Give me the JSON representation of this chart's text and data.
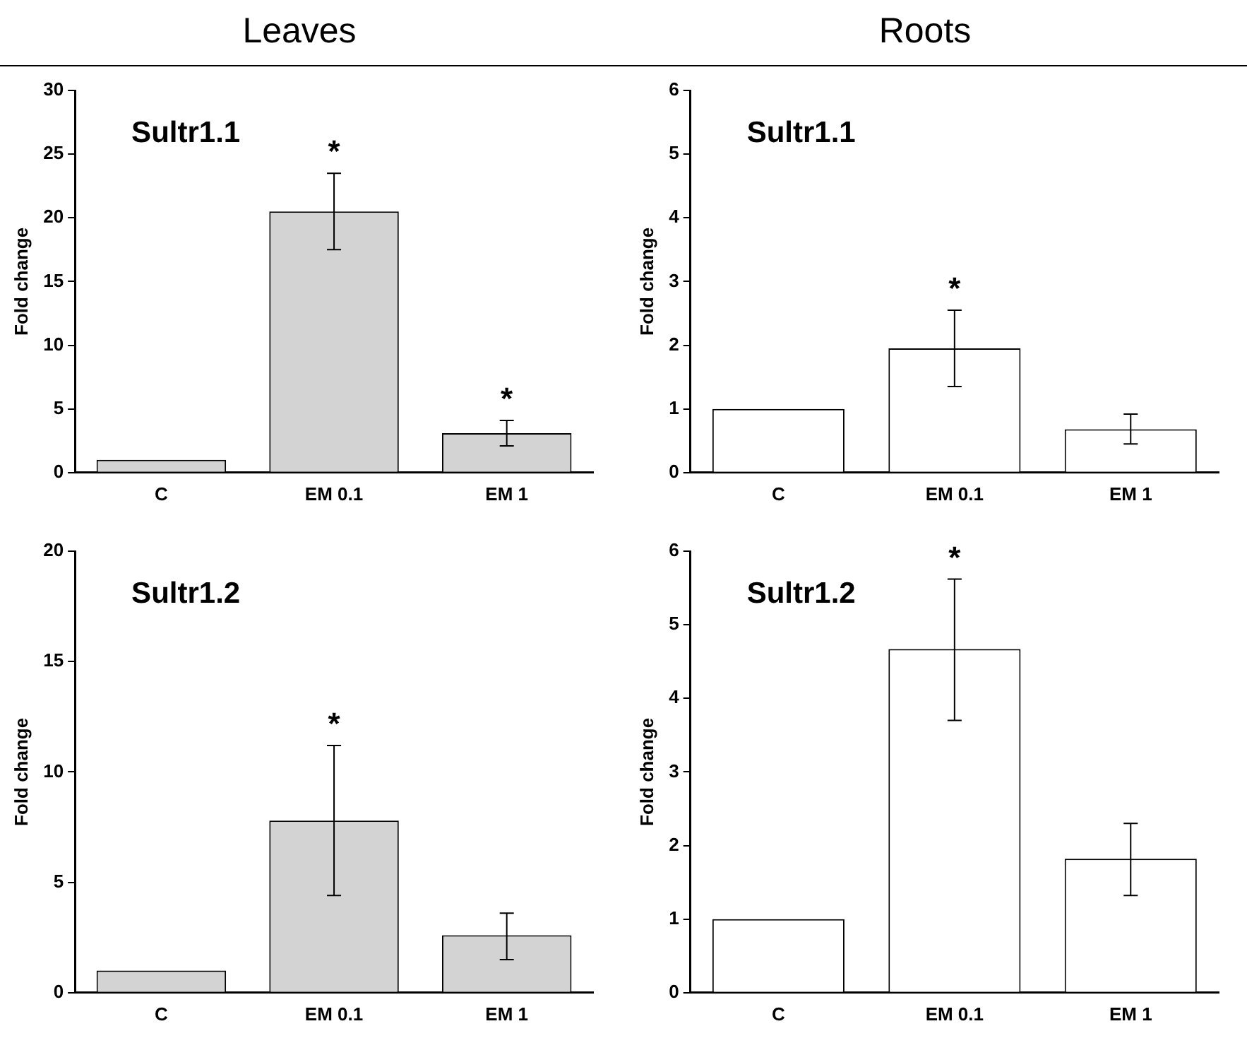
{
  "chart_data": [
    {
      "type": "bar",
      "title": "Leaves",
      "ylabel": "Fold change",
      "categories": [
        "C",
        "EM 0.1",
        "EM 1"
      ],
      "values": [
        1,
        20.5,
        3.1
      ],
      "errors": [
        null,
        [
          17.5,
          23.5
        ],
        [
          2.1,
          4.1
        ]
      ],
      "color": "#d3d3d3",
      "ylim": [
        0,
        30
      ],
      "yticks": [
        0,
        5,
        10,
        15,
        20,
        25,
        30
      ],
      "grid": false,
      "legend": false,
      "annotations": [
        "Sultr1.1",
        {
          "text": "*",
          "x": "EM 0.1",
          "y": 23.5
        },
        {
          "text": "*",
          "x": "EM 1",
          "y": 4.1
        }
      ]
    },
    {
      "type": "bar",
      "title": "Roots",
      "ylabel": "Fold change",
      "categories": [
        "C",
        "EM 0.1",
        "EM 1"
      ],
      "values": [
        1,
        1.95,
        0.68
      ],
      "errors": [
        null,
        [
          1.35,
          2.55
        ],
        [
          0.45,
          0.92
        ]
      ],
      "color": "#ffffff",
      "ylim": [
        0,
        6
      ],
      "yticks": [
        0,
        1,
        2,
        3,
        4,
        5,
        6
      ],
      "grid": false,
      "legend": false,
      "annotations": [
        "Sultr1.1",
        {
          "text": "*",
          "x": "EM 0.1",
          "y": 2.55
        }
      ]
    },
    {
      "type": "bar",
      "ylabel": "Fold change",
      "categories": [
        "C",
        "EM 0.1",
        "EM 1"
      ],
      "values": [
        1,
        7.8,
        2.6
      ],
      "errors": [
        null,
        [
          4.4,
          11.2
        ],
        [
          1.5,
          3.6
        ]
      ],
      "color": "#d3d3d3",
      "ylim": [
        0,
        20
      ],
      "yticks": [
        0,
        5,
        10,
        15,
        20
      ],
      "grid": false,
      "legend": false,
      "annotations": [
        "Sultr1.2",
        {
          "text": "*",
          "x": "EM 0.1",
          "y": 11.2
        }
      ]
    },
    {
      "type": "bar",
      "ylabel": "Fold change",
      "categories": [
        "C",
        "EM 0.1",
        "EM 1"
      ],
      "values": [
        1,
        4.67,
        1.82
      ],
      "errors": [
        null,
        [
          3.7,
          5.62
        ],
        [
          1.32,
          2.3
        ]
      ],
      "color": "#ffffff",
      "ylim": [
        0,
        6
      ],
      "yticks": [
        0,
        1,
        2,
        3,
        4,
        5,
        6
      ],
      "grid": false,
      "legend": false,
      "annotations": [
        "Sultr1.2",
        {
          "text": "*",
          "x": "EM 0.1",
          "y": 5.62
        }
      ]
    }
  ]
}
